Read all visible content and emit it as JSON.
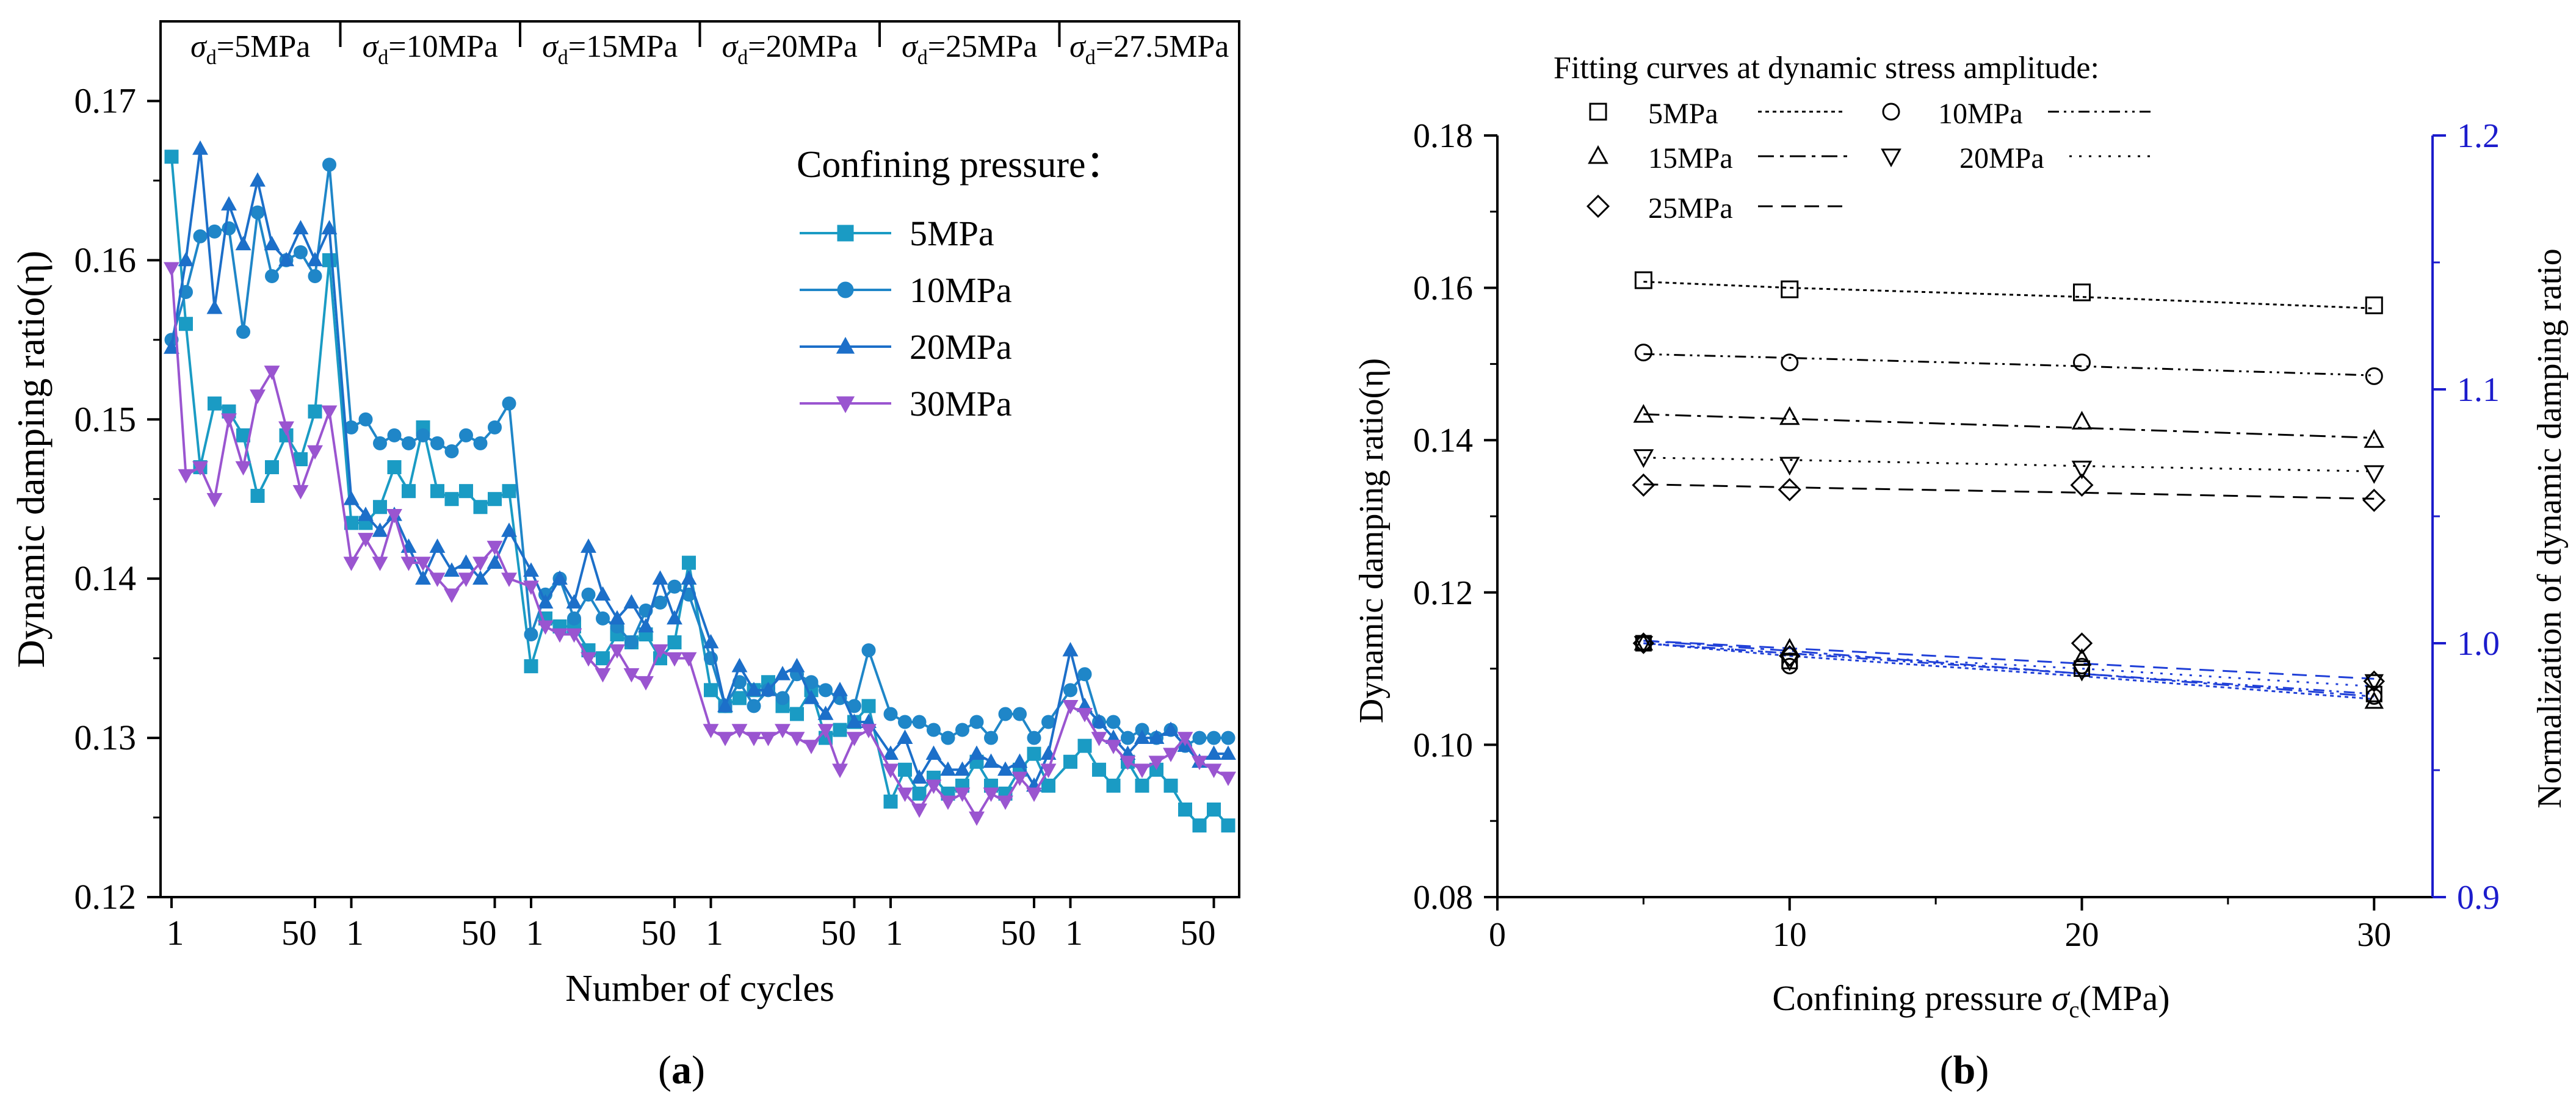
{
  "panel_a": {
    "label": "a",
    "ylabel": "Dynamic damping ratio(η)",
    "xlabel": "Number of cycles",
    "stages": [
      {
        "sym": "σ",
        "sub": "d",
        "value": "=5MPa"
      },
      {
        "sym": "σ",
        "sub": "d",
        "value": "=10MPa"
      },
      {
        "sym": "σ",
        "sub": "d",
        "value": "=15MPa"
      },
      {
        "sym": "σ",
        "sub": "d",
        "value": "=20MPa"
      },
      {
        "sym": "σ",
        "sub": "d",
        "value": "=25MPa"
      },
      {
        "sym": "σ",
        "sub": "d",
        "value": "=27.5MPa"
      }
    ],
    "legend_title": "Confining pressure：",
    "yticks": [
      "0.12",
      "0.13",
      "0.14",
      "0.15",
      "0.16",
      "0.17"
    ],
    "xtick_first": "1",
    "xtick_last": "50"
  },
  "panel_b": {
    "label": "b",
    "ylabel_left": "Dynamic damping ratio(η)",
    "ylabel_right": "Normalization of dynamic damping ratio",
    "xlabel_prefix": "Confining pressure ",
    "xlabel_sym": "σ",
    "xlabel_sub": "c",
    "xlabel_unit": "(MPa)",
    "legend_title": "Fitting curves at dynamic stress amplitude:",
    "legend_items": [
      "5MPa",
      "10MPa",
      "15MPa",
      "20MPa",
      "25MPa"
    ],
    "xticks": [
      "0",
      "10",
      "20",
      "30"
    ],
    "yticks_left": [
      "0.08",
      "0.10",
      "0.12",
      "0.14",
      "0.16",
      "0.18"
    ],
    "yticks_right": [
      "0.9",
      "1.0",
      "1.1",
      "1.2"
    ]
  },
  "colors": {
    "5MPa": "#1a9bc4",
    "10MPa": "#1f86c8",
    "20MPa": "#1c6fc9",
    "30MPa": "#9a55d0",
    "right_axis": "#1c1ccc",
    "norm_line": "#2040d8"
  },
  "chart_data": [
    {
      "type": "line",
      "title": "(a)",
      "xlabel": "Number of cycles",
      "ylabel": "Dynamic damping ratio(η)",
      "ylim": [
        0.12,
        0.175
      ],
      "stages": [
        "σd=5MPa",
        "σd=10MPa",
        "σd=15MPa",
        "σd=20MPa",
        "σd=25MPa",
        "σd=27.5MPa"
      ],
      "cycles_per_stage": 60,
      "sample_interval": 5,
      "legend": "Confining pressure",
      "series": [
        {
          "name": "5MPa",
          "marker": "square",
          "values": [
            0.1665,
            0.156,
            0.147,
            0.151,
            0.1505,
            0.149,
            0.1452,
            0.147,
            0.149,
            0.1475,
            0.1505,
            0.16,
            0.1435,
            0.1435,
            0.1445,
            0.147,
            0.1455,
            0.1495,
            0.1455,
            0.145,
            0.1455,
            0.1445,
            0.145,
            0.1455,
            0.1345,
            0.1375,
            0.137,
            0.137,
            0.1355,
            0.135,
            0.1365,
            0.136,
            0.1365,
            0.135,
            0.136,
            0.141,
            0.133,
            0.132,
            0.1325,
            0.133,
            0.1335,
            0.132,
            0.1315,
            0.133,
            0.13,
            0.1305,
            0.131,
            0.132,
            0.126,
            0.128,
            0.1265,
            0.1275,
            0.1265,
            0.127,
            0.1285,
            0.127,
            0.1265,
            0.128,
            0.129,
            0.127,
            0.1285,
            0.1295,
            0.128,
            0.127,
            0.1285,
            0.127,
            0.128,
            0.127,
            0.1255,
            0.1245,
            0.1255,
            0.1245
          ]
        },
        {
          "name": "10MPa",
          "marker": "circle",
          "values": [
            0.155,
            0.158,
            0.1615,
            0.1618,
            0.162,
            0.1555,
            0.163,
            0.159,
            0.16,
            0.1605,
            0.159,
            0.166,
            0.1495,
            0.15,
            0.1485,
            0.149,
            0.1485,
            0.149,
            0.1485,
            0.148,
            0.149,
            0.1485,
            0.1495,
            0.151,
            0.1365,
            0.139,
            0.14,
            0.1375,
            0.139,
            0.1375,
            0.137,
            0.136,
            0.138,
            0.1385,
            0.1395,
            0.139,
            0.135,
            0.132,
            0.1335,
            0.132,
            0.133,
            0.1325,
            0.134,
            0.1335,
            0.133,
            0.1325,
            0.132,
            0.1355,
            0.1315,
            0.131,
            0.131,
            0.1305,
            0.13,
            0.1305,
            0.131,
            0.13,
            0.1315,
            0.1315,
            0.13,
            0.131,
            0.133,
            0.134,
            0.131,
            0.131,
            0.13,
            0.1305,
            0.13,
            0.1305,
            0.1295,
            0.13,
            0.13,
            0.13
          ]
        },
        {
          "name": "20MPa",
          "marker": "triangle-up",
          "values": [
            0.1545,
            0.16,
            0.167,
            0.157,
            0.1635,
            0.161,
            0.165,
            0.161,
            0.16,
            0.162,
            0.16,
            0.162,
            0.145,
            0.144,
            0.143,
            0.144,
            0.142,
            0.14,
            0.142,
            0.1405,
            0.141,
            0.14,
            0.141,
            0.143,
            0.1405,
            0.1385,
            0.14,
            0.1385,
            0.142,
            0.139,
            0.1375,
            0.1385,
            0.137,
            0.14,
            0.1375,
            0.14,
            0.136,
            0.132,
            0.1345,
            0.133,
            0.133,
            0.134,
            0.1345,
            0.1325,
            0.1315,
            0.133,
            0.131,
            0.131,
            0.129,
            0.13,
            0.1275,
            0.129,
            0.128,
            0.128,
            0.129,
            0.1285,
            0.128,
            0.1285,
            0.127,
            0.129,
            0.1355,
            0.132,
            0.131,
            0.13,
            0.129,
            0.13,
            0.13,
            0.1305,
            0.1295,
            0.1285,
            0.129,
            0.129
          ]
        },
        {
          "name": "30MPa",
          "marker": "triangle-down",
          "values": [
            0.1595,
            0.1465,
            0.147,
            0.145,
            0.15,
            0.147,
            0.1515,
            0.153,
            0.1495,
            0.1455,
            0.148,
            0.1505,
            0.141,
            0.1425,
            0.141,
            0.144,
            0.141,
            0.141,
            0.14,
            0.139,
            0.14,
            0.141,
            0.142,
            0.14,
            0.1395,
            0.137,
            0.1365,
            0.1365,
            0.135,
            0.134,
            0.1355,
            0.134,
            0.1335,
            0.1355,
            0.135,
            0.135,
            0.1305,
            0.13,
            0.1305,
            0.13,
            0.13,
            0.1305,
            0.13,
            0.1295,
            0.1305,
            0.128,
            0.13,
            0.1305,
            0.128,
            0.1265,
            0.1255,
            0.127,
            0.126,
            0.1265,
            0.125,
            0.1265,
            0.126,
            0.1275,
            0.1265,
            0.128,
            0.132,
            0.1315,
            0.13,
            0.1295,
            0.1285,
            0.128,
            0.1285,
            0.129,
            0.13,
            0.1285,
            0.128,
            0.1275
          ]
        }
      ]
    },
    {
      "type": "scatter",
      "title": "(b)",
      "xlabel": "Confining pressure σc(MPa)",
      "ylabel": "Dynamic damping ratio(η)",
      "ylabel_right": "Normalization of dynamic damping ratio",
      "xlim": [
        0,
        32
      ],
      "ylim": [
        0.08,
        0.18
      ],
      "ylim_right": [
        0.9,
        1.2
      ],
      "x": [
        5,
        10,
        20,
        30
      ],
      "series": [
        {
          "name": "5MPa",
          "marker": "square",
          "values": [
            0.161,
            0.1598,
            0.1594,
            0.1577
          ],
          "fit": [
            0.1608,
            0.16,
            0.1588,
            0.1573
          ]
        },
        {
          "name": "10MPa",
          "marker": "circle",
          "values": [
            0.1515,
            0.1502,
            0.1502,
            0.1484
          ],
          "fit": [
            0.1513,
            0.1508,
            0.1497,
            0.1485
          ]
        },
        {
          "name": "15MPa",
          "marker": "triangle-up",
          "values": [
            0.1433,
            0.143,
            0.1424,
            0.14
          ],
          "fit": [
            0.1434,
            0.1428,
            0.1416,
            0.1403
          ]
        },
        {
          "name": "20MPa",
          "marker": "triangle-down",
          "values": [
            0.1378,
            0.1368,
            0.1363,
            0.1357
          ],
          "fit": [
            0.1377,
            0.1374,
            0.1366,
            0.1359
          ]
        },
        {
          "name": "25MPa",
          "marker": "diamond",
          "values": [
            0.1341,
            0.1335,
            0.1341,
            0.1321
          ],
          "fit": [
            0.1342,
            0.1338,
            0.1331,
            0.1323
          ]
        }
      ],
      "normalized_series": [
        {
          "name": "5MPa",
          "marker": "square",
          "values": [
            1.0,
            0.993,
            0.99,
            0.98
          ]
        },
        {
          "name": "10MPa",
          "marker": "circle",
          "values": [
            1.0,
            0.991,
            0.991,
            0.979
          ]
        },
        {
          "name": "15MPa",
          "marker": "triangle-up",
          "values": [
            1.0,
            0.998,
            0.994,
            0.977
          ]
        },
        {
          "name": "20MPa",
          "marker": "triangle-down",
          "values": [
            1.0,
            0.993,
            0.989,
            0.985
          ]
        },
        {
          "name": "25MPa",
          "marker": "diamond",
          "values": [
            1.0,
            0.995,
            1.0,
            0.985
          ]
        }
      ],
      "normalized_fits": [
        {
          "name": "5MPa",
          "dash": "dotted",
          "values": [
            1.0,
            0.995,
            0.987,
            0.978
          ]
        },
        {
          "name": "10MPa",
          "dash": "dashdotdot",
          "values": [
            1.0,
            0.996,
            0.988,
            0.98
          ]
        },
        {
          "name": "15MPa",
          "dash": "dashdot",
          "values": [
            1.001,
            0.997,
            0.988,
            0.979
          ]
        },
        {
          "name": "20MPa",
          "dash": "dot",
          "values": [
            1.0,
            0.996,
            0.99,
            0.983
          ]
        },
        {
          "name": "25MPa",
          "dash": "dash",
          "values": [
            1.001,
            0.998,
            0.992,
            0.986
          ]
        }
      ]
    }
  ]
}
